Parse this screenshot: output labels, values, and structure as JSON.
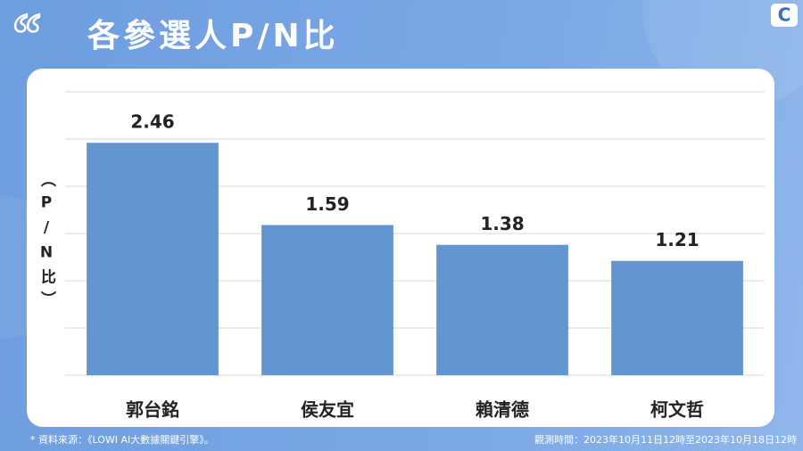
{
  "chart_data": {
    "type": "bar",
    "title": "各參選人P/N比",
    "y_label": "（P/N比）",
    "categories": [
      "郭台銘",
      "侯友宜",
      "賴清德",
      "柯文哲"
    ],
    "values": [
      2.46,
      1.59,
      1.38,
      1.21
    ],
    "color": "#6396d0",
    "ylim": [
      0,
      3
    ],
    "yticks": [
      0,
      0.5,
      1,
      1.5,
      2,
      2.5,
      3
    ],
    "grid": true,
    "source": "* 資料來源：《LOWI AI大數據關鍵引擎》。",
    "period": "觀測時間：2023年10月11日12時至2023年10月18日12時"
  }
}
